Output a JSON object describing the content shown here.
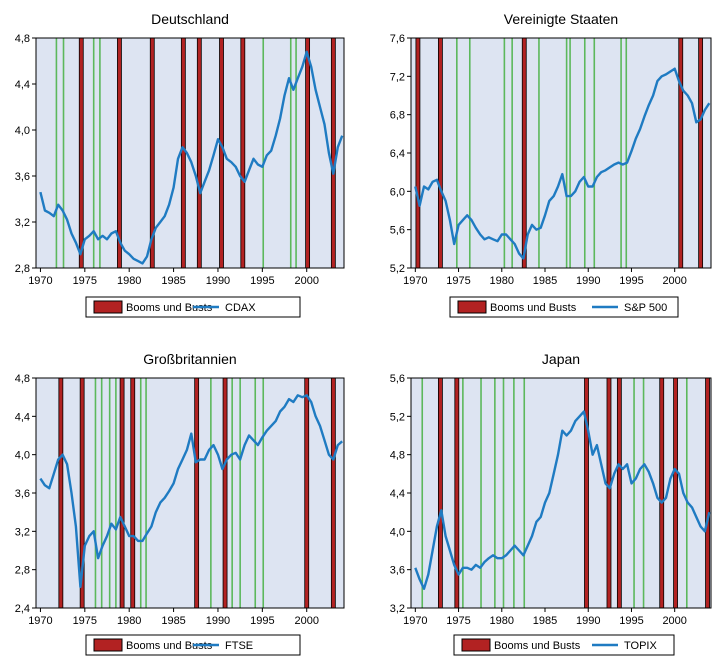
{
  "colors": {
    "plot_bg": "#dde4f2",
    "boom_bust_fill": "#b22222",
    "boom_bust_edge": "#000000",
    "green_marker": "#5cb85c",
    "series_line": "#1f7bc2"
  },
  "chart_data": [
    {
      "type": "line",
      "title": "Deutschland",
      "xlim": [
        1969.5,
        2004.2
      ],
      "ylim": [
        2.8,
        4.8
      ],
      "xticks": [
        1970,
        1975,
        1980,
        1985,
        1990,
        1995,
        2000
      ],
      "yticks": [
        2.8,
        3.2,
        3.6,
        4.0,
        4.4,
        4.8
      ],
      "ytick_labels": [
        "2,8",
        "3,2",
        "3,6",
        "4,0",
        "4,4",
        "4,8"
      ],
      "legend": {
        "bar_label": "Booms und Busts",
        "line_label": "CDAX",
        "placement": "bottom"
      },
      "booms_busts": [
        1974.6,
        1978.9,
        1982.6,
        1986.1,
        1987.9,
        1990.4,
        1992.8,
        2000.1,
        2003.0
      ],
      "green_markers": [
        1971.8,
        1972.6,
        1976.0,
        1976.7,
        1995.1,
        1998.2,
        1998.8
      ],
      "series": [
        {
          "name": "CDAX",
          "x": [
            1970,
            1970.5,
            1971,
            1971.5,
            1972,
            1972.5,
            1973,
            1973.5,
            1974,
            1974.5,
            1975,
            1975.5,
            1976,
            1976.5,
            1977,
            1977.5,
            1978,
            1978.5,
            1979,
            1979.5,
            1980,
            1980.5,
            1981,
            1981.5,
            1982,
            1982.5,
            1983,
            1983.5,
            1984,
            1984.5,
            1985,
            1985.5,
            1986,
            1986.5,
            1987,
            1987.5,
            1988,
            1988.5,
            1989,
            1989.5,
            1990,
            1990.5,
            1991,
            1991.5,
            1992,
            1992.5,
            1993,
            1993.5,
            1994,
            1994.5,
            1995,
            1995.5,
            1996,
            1996.5,
            1997,
            1997.5,
            1998,
            1998.5,
            1999,
            1999.5,
            2000,
            2000.5,
            2001,
            2001.5,
            2002,
            2002.5,
            2003,
            2003.5,
            2004
          ],
          "values": [
            3.46,
            3.3,
            3.28,
            3.25,
            3.35,
            3.3,
            3.22,
            3.1,
            3.02,
            2.92,
            3.05,
            3.08,
            3.12,
            3.05,
            3.08,
            3.05,
            3.1,
            3.12,
            3.02,
            2.95,
            2.92,
            2.88,
            2.86,
            2.84,
            2.9,
            3.05,
            3.15,
            3.2,
            3.25,
            3.35,
            3.5,
            3.75,
            3.85,
            3.8,
            3.72,
            3.6,
            3.45,
            3.55,
            3.65,
            3.78,
            3.92,
            3.85,
            3.75,
            3.72,
            3.68,
            3.6,
            3.55,
            3.65,
            3.75,
            3.7,
            3.68,
            3.78,
            3.82,
            3.95,
            4.1,
            4.3,
            4.45,
            4.35,
            4.45,
            4.55,
            4.68,
            4.55,
            4.35,
            4.2,
            4.05,
            3.8,
            3.62,
            3.85,
            3.95
          ]
        }
      ]
    },
    {
      "type": "line",
      "title": "Vereinigte Staaten",
      "xlim": [
        1969.5,
        2004.2
      ],
      "ylim": [
        5.2,
        7.6
      ],
      "xticks": [
        1970,
        1975,
        1980,
        1985,
        1990,
        1995,
        2000
      ],
      "yticks": [
        5.2,
        5.6,
        6.0,
        6.4,
        6.8,
        7.2,
        7.6
      ],
      "ytick_labels": [
        "5,2",
        "5,6",
        "6,0",
        "6,4",
        "6,8",
        "7,2",
        "7,6"
      ],
      "legend": {
        "bar_label": "Booms und Busts",
        "line_label": "S&P 500",
        "placement": "bottom"
      },
      "booms_busts": [
        1970.3,
        1972.9,
        1982.6,
        2000.7,
        2003.0
      ],
      "green_markers": [
        1974.8,
        1976.3,
        1980.3,
        1981.2,
        1984.3,
        1987.5,
        1987.9,
        1989.6,
        1990.7,
        1993.8,
        1994.4
      ],
      "series": [
        {
          "name": "S&P 500",
          "x": [
            1970,
            1970.5,
            1971,
            1971.5,
            1972,
            1972.5,
            1973,
            1973.5,
            1974,
            1974.5,
            1975,
            1975.5,
            1976,
            1976.5,
            1977,
            1977.5,
            1978,
            1978.5,
            1979,
            1979.5,
            1980,
            1980.5,
            1981,
            1981.5,
            1982,
            1982.5,
            1983,
            1983.5,
            1984,
            1984.5,
            1985,
            1985.5,
            1986,
            1986.5,
            1987,
            1987.5,
            1988,
            1988.5,
            1989,
            1989.5,
            1990,
            1990.5,
            1991,
            1991.5,
            1992,
            1992.5,
            1993,
            1993.5,
            1994,
            1994.5,
            1995,
            1995.5,
            1996,
            1996.5,
            1997,
            1997.5,
            1998,
            1998.5,
            1999,
            1999.5,
            2000,
            2000.5,
            2001,
            2001.5,
            2002,
            2002.5,
            2003,
            2003.5,
            2004
          ],
          "values": [
            6.05,
            5.85,
            6.05,
            6.02,
            6.1,
            6.12,
            6.0,
            5.9,
            5.7,
            5.45,
            5.65,
            5.7,
            5.75,
            5.7,
            5.62,
            5.55,
            5.5,
            5.52,
            5.5,
            5.48,
            5.55,
            5.55,
            5.5,
            5.45,
            5.35,
            5.3,
            5.55,
            5.65,
            5.6,
            5.62,
            5.75,
            5.9,
            5.95,
            6.05,
            6.18,
            5.95,
            5.95,
            6.0,
            6.1,
            6.15,
            6.05,
            6.05,
            6.15,
            6.2,
            6.22,
            6.25,
            6.28,
            6.3,
            6.28,
            6.3,
            6.42,
            6.55,
            6.65,
            6.78,
            6.9,
            7.0,
            7.15,
            7.2,
            7.22,
            7.25,
            7.28,
            7.15,
            7.05,
            7.0,
            6.92,
            6.72,
            6.75,
            6.85,
            6.92
          ]
        }
      ]
    },
    {
      "type": "line",
      "title": "Großbritannien",
      "xlim": [
        1969.5,
        2004.2
      ],
      "ylim": [
        2.4,
        4.8
      ],
      "xticks": [
        1970,
        1975,
        1980,
        1985,
        1990,
        1995,
        2000
      ],
      "yticks": [
        2.4,
        2.8,
        3.2,
        3.6,
        4.0,
        4.4,
        4.8
      ],
      "ytick_labels": [
        "2,4",
        "2,8",
        "3,2",
        "3,6",
        "4,0",
        "4,4",
        "4,8"
      ],
      "legend": {
        "bar_label": "Booms und Busts",
        "line_label": "FTSE",
        "placement": "bottom"
      },
      "booms_busts": [
        1972.3,
        1974.7,
        1979.2,
        1980.4,
        1987.6,
        1990.8,
        2000.0,
        2003.0
      ],
      "green_markers": [
        1976.2,
        1976.9,
        1977.8,
        1978.5,
        1981.3,
        1981.9,
        1989.2,
        1991.6,
        1992.5,
        1994.2,
        1995.1
      ],
      "series": [
        {
          "name": "FTSE",
          "x": [
            1970,
            1970.5,
            1971,
            1971.5,
            1972,
            1972.5,
            1973,
            1973.5,
            1974,
            1974.5,
            1975,
            1975.5,
            1976,
            1976.5,
            1977,
            1977.5,
            1978,
            1978.5,
            1979,
            1979.5,
            1980,
            1980.5,
            1981,
            1981.5,
            1982,
            1982.5,
            1983,
            1983.5,
            1984,
            1984.5,
            1985,
            1985.5,
            1986,
            1986.5,
            1987,
            1987.5,
            1988,
            1988.5,
            1989,
            1989.5,
            1990,
            1990.5,
            1991,
            1991.5,
            1992,
            1992.5,
            1993,
            1993.5,
            1994,
            1994.5,
            1995,
            1995.5,
            1996,
            1996.5,
            1997,
            1997.5,
            1998,
            1998.5,
            1999,
            1999.5,
            2000,
            2000.5,
            2001,
            2001.5,
            2002,
            2002.5,
            2003,
            2003.5,
            2004
          ],
          "values": [
            3.75,
            3.68,
            3.65,
            3.8,
            3.95,
            4.0,
            3.9,
            3.6,
            3.25,
            2.62,
            3.05,
            3.15,
            3.2,
            2.92,
            3.05,
            3.15,
            3.28,
            3.22,
            3.35,
            3.25,
            3.15,
            3.15,
            3.1,
            3.1,
            3.18,
            3.25,
            3.4,
            3.5,
            3.55,
            3.62,
            3.7,
            3.85,
            3.95,
            4.05,
            4.22,
            3.92,
            3.95,
            3.95,
            4.05,
            4.1,
            4.0,
            3.85,
            3.95,
            4.0,
            4.02,
            3.95,
            4.1,
            4.2,
            4.15,
            4.1,
            4.18,
            4.25,
            4.3,
            4.35,
            4.45,
            4.5,
            4.58,
            4.55,
            4.62,
            4.6,
            4.62,
            4.55,
            4.4,
            4.3,
            4.15,
            4.0,
            3.95,
            4.1,
            4.14
          ]
        }
      ]
    },
    {
      "type": "line",
      "title": "Japan",
      "xlim": [
        1969.5,
        2004.2
      ],
      "ylim": [
        3.2,
        5.6
      ],
      "xticks": [
        1970,
        1975,
        1980,
        1985,
        1990,
        1995,
        2000
      ],
      "yticks": [
        3.2,
        3.6,
        4.0,
        4.4,
        4.8,
        5.2,
        5.6
      ],
      "ytick_labels": [
        "3,2",
        "3,6",
        "4,0",
        "4,4",
        "4,8",
        "5,2",
        "5,6"
      ],
      "legend": {
        "bar_label": "Booms und Busts",
        "line_label": "TOPIX",
        "placement": "bottom"
      },
      "booms_busts": [
        1972.9,
        1974.8,
        1989.8,
        1992.4,
        1993.6,
        1998.5,
        2000.1,
        2003.8
      ],
      "green_markers": [
        1970.8,
        1975.5,
        1977.6,
        1979.2,
        1980.2,
        1981.4,
        1982.6,
        1995.3,
        1996.4,
        2001.4
      ],
      "series": [
        {
          "name": "TOPIX",
          "x": [
            1970,
            1970.5,
            1971,
            1971.5,
            1972,
            1972.5,
            1973,
            1973.5,
            1974,
            1974.5,
            1975,
            1975.5,
            1976,
            1976.5,
            1977,
            1977.5,
            1978,
            1978.5,
            1979,
            1979.5,
            1980,
            1980.5,
            1981,
            1981.5,
            1982,
            1982.5,
            1983,
            1983.5,
            1984,
            1984.5,
            1985,
            1985.5,
            1986,
            1986.5,
            1987,
            1987.5,
            1988,
            1988.5,
            1989,
            1989.5,
            1990,
            1990.5,
            1991,
            1991.5,
            1992,
            1992.5,
            1993,
            1993.5,
            1994,
            1994.5,
            1995,
            1995.5,
            1996,
            1996.5,
            1997,
            1997.5,
            1998,
            1998.5,
            1999,
            1999.5,
            2000,
            2000.5,
            2001,
            2001.5,
            2002,
            2002.5,
            2003,
            2003.5,
            2004
          ],
          "values": [
            3.62,
            3.5,
            3.4,
            3.55,
            3.8,
            4.05,
            4.22,
            3.95,
            3.8,
            3.65,
            3.55,
            3.62,
            3.62,
            3.6,
            3.65,
            3.62,
            3.68,
            3.72,
            3.75,
            3.72,
            3.72,
            3.75,
            3.8,
            3.85,
            3.8,
            3.75,
            3.85,
            3.95,
            4.1,
            4.15,
            4.3,
            4.4,
            4.6,
            4.8,
            5.05,
            5.0,
            5.05,
            5.15,
            5.2,
            5.25,
            5.05,
            4.8,
            4.9,
            4.7,
            4.5,
            4.45,
            4.6,
            4.7,
            4.65,
            4.7,
            4.5,
            4.55,
            4.65,
            4.7,
            4.62,
            4.5,
            4.35,
            4.3,
            4.35,
            4.55,
            4.65,
            4.6,
            4.4,
            4.3,
            4.25,
            4.15,
            4.05,
            4.0,
            4.2
          ]
        }
      ]
    }
  ]
}
